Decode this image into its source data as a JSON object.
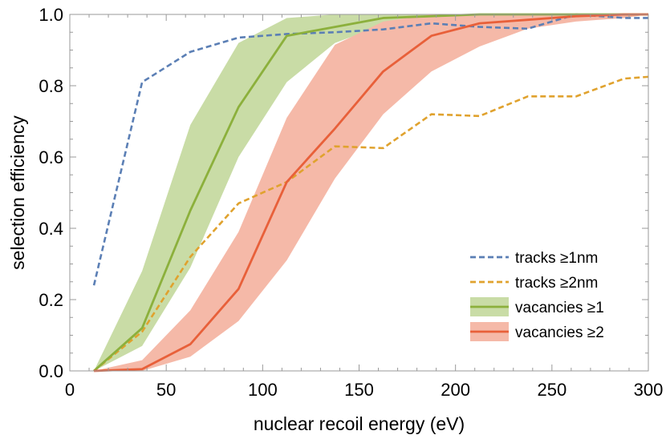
{
  "chart_data": {
    "type": "line",
    "title": "",
    "xlabel": "nuclear recoil energy (eV)",
    "ylabel": "selection efficiency",
    "xlim": [
      0,
      300
    ],
    "ylim": [
      0,
      1
    ],
    "x_ticks": [
      "0",
      "50",
      "100",
      "150",
      "200",
      "250",
      "300"
    ],
    "y_ticks": [
      "0.0",
      "0.2",
      "0.4",
      "0.6",
      "0.8",
      "1.0"
    ],
    "legend_position": "bottom-right",
    "grid": false,
    "series": [
      {
        "name": "tracks ≥1nm",
        "style": "dashed",
        "color": "#5b7fb5",
        "x": [
          12.5,
          37.5,
          62.5,
          87.5,
          112.5,
          137.5,
          162.5,
          187.5,
          212.5,
          237.5,
          262.5,
          287.5,
          300
        ],
        "y": [
          0.24,
          0.81,
          0.895,
          0.935,
          0.945,
          0.95,
          0.958,
          0.975,
          0.965,
          0.96,
          1.0,
          0.99,
          0.99
        ]
      },
      {
        "name": "tracks ≥2nm",
        "style": "dashed",
        "color": "#e0a22e",
        "x": [
          12.5,
          37.5,
          62.5,
          87.5,
          112.5,
          137.5,
          162.5,
          187.5,
          212.5,
          237.5,
          262.5,
          287.5,
          300
        ],
        "y": [
          0.0,
          0.11,
          0.32,
          0.47,
          0.53,
          0.63,
          0.625,
          0.72,
          0.715,
          0.77,
          0.77,
          0.82,
          0.825
        ]
      },
      {
        "name": "vacancies ≥1",
        "style": "solid",
        "color": "#8cb03c",
        "band_color": "#c9dca6",
        "x": [
          12.5,
          37.5,
          62.5,
          87.5,
          112.5,
          137.5,
          162.5,
          187.5,
          212.5,
          237.5,
          262.5,
          287.5,
          300
        ],
        "y": [
          0.0,
          0.12,
          0.45,
          0.74,
          0.94,
          0.965,
          0.99,
          0.995,
          1.0,
          1.0,
          1.0,
          1.0,
          1.0
        ],
        "lower": [
          0.0,
          0.07,
          0.29,
          0.6,
          0.81,
          0.92,
          0.97,
          0.99,
          1.0,
          1.0,
          1.0,
          1.0,
          1.0
        ],
        "upper": [
          0.0,
          0.28,
          0.69,
          0.92,
          0.99,
          1.0,
          1.0,
          1.0,
          1.0,
          1.0,
          1.0,
          1.0,
          1.0
        ]
      },
      {
        "name": "vacancies ≥2",
        "style": "solid",
        "color": "#e8603a",
        "band_color": "#f5b9a8",
        "x": [
          12.5,
          37.5,
          62.5,
          87.5,
          112.5,
          137.5,
          162.5,
          187.5,
          212.5,
          237.5,
          262.5,
          287.5,
          300
        ],
        "y": [
          0.0,
          0.005,
          0.075,
          0.23,
          0.53,
          0.68,
          0.84,
          0.94,
          0.975,
          0.985,
          0.995,
          1.0,
          1.0
        ],
        "lower": [
          0.0,
          0.0,
          0.04,
          0.14,
          0.31,
          0.54,
          0.72,
          0.84,
          0.91,
          0.96,
          0.98,
          0.99,
          1.0
        ],
        "upper": [
          0.0,
          0.03,
          0.17,
          0.39,
          0.71,
          0.915,
          0.98,
          1.0,
          1.0,
          1.0,
          1.0,
          1.0,
          1.0
        ]
      }
    ]
  }
}
